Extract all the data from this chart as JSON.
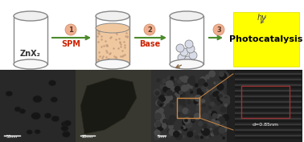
{
  "bg_color": "#ffffff",
  "yellow_box_color": "#ffff00",
  "cylinder_edge_color": "#888888",
  "cylinder_fill_empty": "#ffffff",
  "cylinder_fill_liquid": "#f0c8a0",
  "cylinder_fill_particles": "#d0d8e8",
  "arrow_color": "#4a8a2a",
  "step_circle_color": "#f0b090",
  "step_text_color": "#cc2200",
  "label_color": "#cc2200",
  "photocatalysis_color": "#000000",
  "hv_color": "#404040",
  "znx_label": "ZnX₂",
  "spm_label": "SPM",
  "base_label": "Base",
  "photocatalysis_label": "Photocatalysis",
  "hv_label": "hv",
  "step1": "1",
  "step2": "2",
  "step3": "3",
  "bottom_bg": "#1a1a1a",
  "scale_bar_color": "#ffffff",
  "orange_box_color": "#cc8844",
  "red_box_color": "#993333",
  "d_label": "d=0.85nm"
}
